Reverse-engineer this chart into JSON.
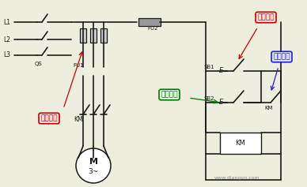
{
  "bg_color": "#eeeedf",
  "line_color": "#1a1a1a",
  "watermark": "www.diangon.com",
  "annotations": {
    "short_circuit": {
      "text": "短路保护",
      "color": "#cc0000",
      "bg": "#ffdddd"
    },
    "start_btn": {
      "text": "起动按钮",
      "color": "#007700",
      "bg": "#ddffdd"
    },
    "stop_btn": {
      "text": "停止按钮",
      "color": "#cc0000",
      "bg": "#ffdddd"
    },
    "self_lock": {
      "text": "自锁触头",
      "color": "#2222cc",
      "bg": "#ddddff"
    }
  }
}
